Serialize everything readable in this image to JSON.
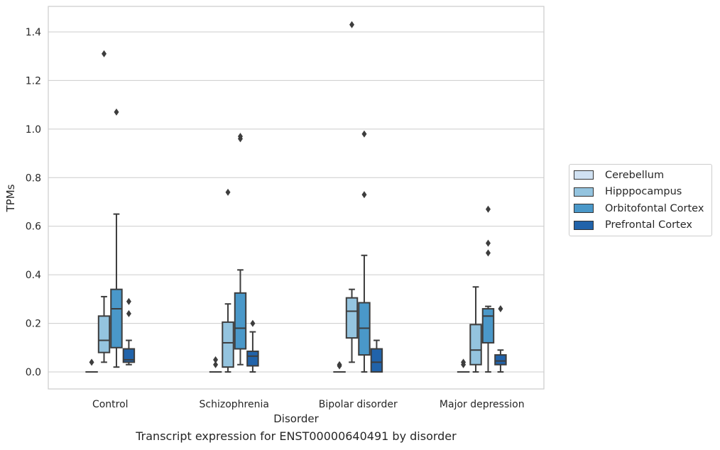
{
  "chart_data": {
    "type": "box",
    "xlabel": "Disorder",
    "ylabel": "TPMs",
    "caption": "Transcript expression for ENST00000640491 by disorder",
    "ylim": [
      -0.07,
      1.5
    ],
    "yticks": [
      "0.0",
      "0.2",
      "0.4",
      "0.6",
      "0.8",
      "1.0",
      "1.2",
      "1.4"
    ],
    "grid": "horizontal",
    "legend_position": "right",
    "categories": [
      "Control",
      "Schizophrenia",
      "Bipolar disorder",
      "Major depression"
    ],
    "series": [
      {
        "name": "Cerebellum",
        "color": "#d0e1f2",
        "boxes": [
          {
            "q1": 0.0,
            "median": 0.0,
            "q3": 0.0,
            "whislo": 0.0,
            "whishi": 0.0,
            "fliers": [
              0.04
            ]
          },
          {
            "q1": 0.0,
            "median": 0.0,
            "q3": 0.0,
            "whislo": 0.0,
            "whishi": 0.0,
            "fliers": [
              0.03,
              0.05
            ]
          },
          {
            "q1": 0.0,
            "median": 0.0,
            "q3": 0.0,
            "whislo": 0.0,
            "whishi": 0.0,
            "fliers": [
              0.025,
              0.03
            ]
          },
          {
            "q1": 0.0,
            "median": 0.0,
            "q3": 0.0,
            "whislo": 0.0,
            "whishi": 0.0,
            "fliers": [
              0.03,
              0.04
            ]
          }
        ]
      },
      {
        "name": "Hipppocampus",
        "color": "#94c4df",
        "boxes": [
          {
            "q1": 0.08,
            "median": 0.13,
            "q3": 0.23,
            "whislo": 0.04,
            "whishi": 0.31,
            "fliers": [
              1.31
            ]
          },
          {
            "q1": 0.02,
            "median": 0.12,
            "q3": 0.205,
            "whislo": 0.0,
            "whishi": 0.28,
            "fliers": [
              0.74
            ]
          },
          {
            "q1": 0.14,
            "median": 0.25,
            "q3": 0.305,
            "whislo": 0.04,
            "whishi": 0.34,
            "fliers": [
              1.43
            ]
          },
          {
            "q1": 0.03,
            "median": 0.09,
            "q3": 0.195,
            "whislo": 0.0,
            "whishi": 0.35,
            "fliers": []
          }
        ]
      },
      {
        "name": "Orbitofontal Cortex",
        "color": "#4a98c9",
        "boxes": [
          {
            "q1": 0.1,
            "median": 0.26,
            "q3": 0.34,
            "whislo": 0.02,
            "whishi": 0.65,
            "fliers": [
              1.07
            ]
          },
          {
            "q1": 0.095,
            "median": 0.18,
            "q3": 0.325,
            "whislo": 0.03,
            "whishi": 0.42,
            "fliers": [
              0.96,
              0.97
            ]
          },
          {
            "q1": 0.07,
            "median": 0.18,
            "q3": 0.285,
            "whislo": 0.0,
            "whishi": 0.48,
            "fliers": [
              0.98,
              0.73
            ]
          },
          {
            "q1": 0.12,
            "median": 0.23,
            "q3": 0.26,
            "whislo": 0.0,
            "whishi": 0.27,
            "fliers": [
              0.67,
              0.53,
              0.49
            ]
          }
        ]
      },
      {
        "name": "Prefrontal Cortex",
        "color": "#2163aa",
        "boxes": [
          {
            "q1": 0.04,
            "median": 0.05,
            "q3": 0.095,
            "whislo": 0.03,
            "whishi": 0.13,
            "fliers": [
              0.29,
              0.24
            ]
          },
          {
            "q1": 0.025,
            "median": 0.065,
            "q3": 0.085,
            "whislo": 0.0,
            "whishi": 0.165,
            "fliers": [
              0.2
            ]
          },
          {
            "q1": 0.0,
            "median": 0.04,
            "q3": 0.095,
            "whislo": 0.0,
            "whishi": 0.13,
            "fliers": []
          },
          {
            "q1": 0.03,
            "median": 0.045,
            "q3": 0.07,
            "whislo": 0.0,
            "whishi": 0.09,
            "fliers": [
              0.26
            ]
          }
        ]
      }
    ]
  }
}
